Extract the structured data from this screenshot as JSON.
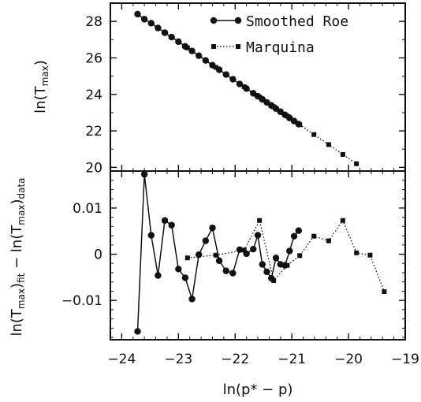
{
  "chart_data": {
    "type": "line",
    "xlabel": "ln(p* − p)",
    "xlim": [
      -24.2,
      -19.0
    ],
    "xticks": [
      -24,
      -23,
      -22,
      -21,
      -20,
      -19
    ],
    "xtick_labels": [
      "−24",
      "−23",
      "−22",
      "−21",
      "−20",
      "−19"
    ],
    "panels": [
      {
        "id": "top",
        "ylabel": {
          "main": "ln(T",
          "sub": "max",
          "close": ")"
        },
        "ylim": [
          19.8,
          29.0
        ],
        "yticks": [
          20,
          22,
          24,
          26,
          28
        ],
        "ytick_labels": [
          "20",
          "22",
          "24",
          "26",
          "28"
        ],
        "series": [
          {
            "name": "Smoothed Roe",
            "marker": "circle",
            "line": "solid",
            "x": [
              -23.72,
              -23.6,
              -23.48,
              -23.36,
              -23.24,
              -23.12,
              -23.0,
              -22.88,
              -22.76,
              -22.64,
              -22.52,
              -22.4,
              -22.28,
              -22.16,
              -22.04,
              -21.92,
              -21.8,
              -21.68,
              -21.6,
              -21.52,
              -21.44,
              -21.36,
              -21.28,
              -21.2,
              -21.12,
              -21.04,
              -20.96,
              -20.88
            ],
            "y": [
              28.4,
              28.12,
              27.9,
              27.64,
              27.38,
              27.14,
              26.89,
              26.63,
              26.38,
              26.12,
              25.86,
              25.6,
              25.35,
              25.09,
              24.83,
              24.57,
              24.32,
              24.06,
              23.9,
              23.73,
              23.56,
              23.39,
              23.22,
              23.05,
              22.88,
              22.71,
              22.54,
              22.37
            ]
          },
          {
            "name": "Marquina",
            "marker": "square",
            "line": "dotted",
            "x": [
              -22.84,
              -22.34,
              -21.84,
              -21.57,
              -21.32,
              -21.08,
              -20.86,
              -20.61,
              -20.35,
              -20.1,
              -19.86,
              -19.62,
              -19.37
            ],
            "y": [
              26.55,
              25.48,
              24.42,
              23.85,
              23.32,
              22.81,
              22.34,
              21.8,
              21.25,
              20.71,
              20.2,
              19.69,
              19.16
            ]
          }
        ]
      },
      {
        "id": "bottom",
        "ylabel": {
          "text1": "ln(T",
          "sub1": "max",
          "text2": ")",
          "sub2": "fit",
          "text3": " − ln(T",
          "sub3": "max",
          "text4": ")",
          "sub4": "data"
        },
        "ylim": [
          -0.0185,
          0.018
        ],
        "yticks": [
          -0.01,
          0,
          0.01
        ],
        "ytick_labels": [
          "−0.01",
          "0",
          "0.01"
        ],
        "series": [
          {
            "name": "Smoothed Roe",
            "marker": "circle",
            "line": "solid",
            "x": [
              -23.72,
              -23.6,
              -23.48,
              -23.36,
              -23.24,
              -23.12,
              -23.0,
              -22.88,
              -22.76,
              -22.64,
              -22.52,
              -22.4,
              -22.28,
              -22.16,
              -22.04,
              -21.92,
              -21.8,
              -21.68,
              -21.6,
              -21.52,
              -21.44,
              -21.36,
              -21.28,
              -21.2,
              -21.12,
              -21.04,
              -20.96,
              -20.88
            ],
            "y": [
              -0.0167,
              0.0173,
              0.0041,
              -0.0046,
              0.0073,
              0.0063,
              -0.0032,
              -0.0051,
              -0.0097,
              -0.0001,
              0.0029,
              0.0057,
              -0.0014,
              -0.0036,
              -0.0041,
              0.001,
              0.0001,
              0.0011,
              0.0041,
              -0.0022,
              -0.0038,
              -0.0052,
              -0.0008,
              -0.0022,
              -0.0024,
              0.0007,
              0.0039,
              0.0051
            ]
          },
          {
            "name": "Marquina",
            "marker": "square",
            "line": "dotted",
            "x": [
              -22.84,
              -22.34,
              -21.84,
              -21.57,
              -21.32,
              -21.08,
              -20.86,
              -20.61,
              -20.35,
              -20.1,
              -19.86,
              -19.62,
              -19.37
            ],
            "y": [
              -0.0008,
              -0.0002,
              0.0009,
              0.0073,
              -0.0057,
              -0.0024,
              -0.0003,
              0.0039,
              0.0029,
              0.0073,
              0.0003,
              -0.0002,
              -0.0081
            ]
          }
        ]
      }
    ],
    "legend": {
      "placement": "top-right",
      "entries": [
        "Smoothed Roe",
        "Marquina"
      ]
    }
  }
}
